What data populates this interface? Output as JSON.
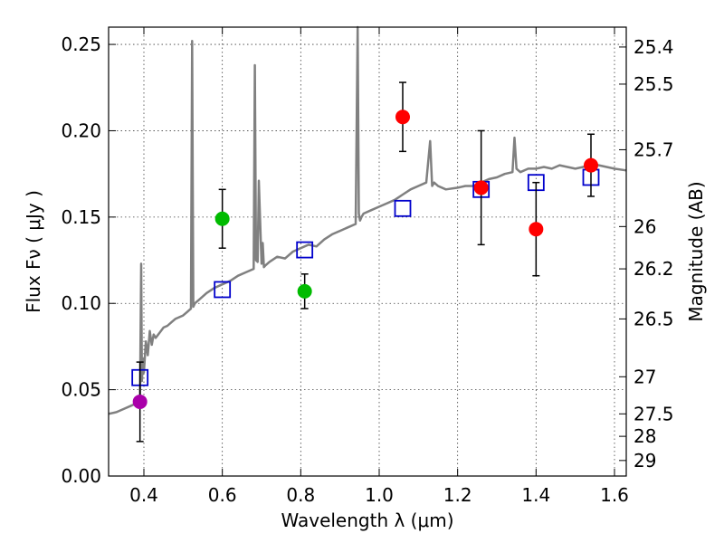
{
  "chart_data": {
    "type": "scatter",
    "xlabel": "Wavelength  λ (μm)",
    "ylabel": "Flux  Fν  ( μJy )",
    "ylabel_right": "Magnitude (AB)",
    "xlim": [
      0.31,
      1.63
    ],
    "ylim": [
      0.0,
      0.26
    ],
    "xticks": [
      0.4,
      0.6,
      0.8,
      1.0,
      1.2,
      1.4,
      1.6
    ],
    "xtick_labels": [
      "0.4",
      "0.6",
      "0.8",
      "1.0",
      "1.2",
      "1.4",
      "1.6"
    ],
    "yticks": [
      0.0,
      0.05,
      0.1,
      0.15,
      0.2,
      0.25
    ],
    "ytick_labels": [
      "0.00",
      "0.05",
      "0.10",
      "0.15",
      "0.20",
      "0.25"
    ],
    "right_ticks": [
      {
        "flux": 0.2485,
        "label": "25.4"
      },
      {
        "flux": 0.227,
        "label": "25.5"
      },
      {
        "flux": 0.189,
        "label": "25.7"
      },
      {
        "flux": 0.1445,
        "label": "26"
      },
      {
        "flux": 0.12,
        "label": "26.2"
      },
      {
        "flux": 0.091,
        "label": "26.5"
      },
      {
        "flux": 0.0575,
        "label": "27"
      },
      {
        "flux": 0.036,
        "label": "27.5"
      },
      {
        "flux": 0.023,
        "label": "28"
      },
      {
        "flux": 0.009,
        "label": "29"
      }
    ],
    "grid": true,
    "series": [
      {
        "color": "#808080",
        "kind": "line",
        "x": [
          0.31,
          0.33,
          0.35,
          0.37,
          0.38,
          0.385,
          0.39,
          0.393,
          0.395,
          0.398,
          0.4,
          0.405,
          0.41,
          0.415,
          0.42,
          0.425,
          0.43,
          0.44,
          0.45,
          0.46,
          0.47,
          0.48,
          0.49,
          0.5,
          0.51,
          0.515,
          0.52,
          0.523,
          0.526,
          0.53,
          0.54,
          0.56,
          0.58,
          0.6,
          0.62,
          0.64,
          0.66,
          0.68,
          0.683,
          0.686,
          0.69,
          0.693,
          0.7,
          0.703,
          0.706,
          0.71,
          0.72,
          0.74,
          0.76,
          0.78,
          0.8,
          0.82,
          0.84,
          0.86,
          0.88,
          0.9,
          0.92,
          0.94,
          0.945,
          0.948,
          0.951,
          0.955,
          0.96,
          0.98,
          1.0,
          1.02,
          1.04,
          1.06,
          1.08,
          1.1,
          1.12,
          1.13,
          1.135,
          1.14,
          1.15,
          1.17,
          1.2,
          1.22,
          1.24,
          1.26,
          1.28,
          1.3,
          1.32,
          1.34,
          1.345,
          1.35,
          1.355,
          1.36,
          1.38,
          1.4,
          1.42,
          1.44,
          1.46,
          1.48,
          1.5,
          1.52,
          1.54,
          1.56,
          1.58,
          1.6,
          1.63
        ],
        "y": [
          0.036,
          0.037,
          0.039,
          0.041,
          0.042,
          0.043,
          0.045,
          0.123,
          0.055,
          0.068,
          0.06,
          0.078,
          0.07,
          0.084,
          0.076,
          0.082,
          0.08,
          0.083,
          0.086,
          0.087,
          0.089,
          0.091,
          0.092,
          0.093,
          0.095,
          0.096,
          0.097,
          0.252,
          0.098,
          0.1,
          0.102,
          0.106,
          0.109,
          0.111,
          0.113,
          0.116,
          0.118,
          0.12,
          0.238,
          0.125,
          0.124,
          0.171,
          0.123,
          0.135,
          0.121,
          0.122,
          0.124,
          0.127,
          0.126,
          0.13,
          0.132,
          0.134,
          0.133,
          0.137,
          0.14,
          0.142,
          0.144,
          0.146,
          0.26,
          0.152,
          0.148,
          0.15,
          0.152,
          0.154,
          0.156,
          0.158,
          0.16,
          0.163,
          0.166,
          0.168,
          0.17,
          0.194,
          0.168,
          0.17,
          0.168,
          0.166,
          0.167,
          0.168,
          0.168,
          0.17,
          0.172,
          0.173,
          0.175,
          0.176,
          0.196,
          0.178,
          0.177,
          0.176,
          0.178,
          0.178,
          0.179,
          0.178,
          0.18,
          0.179,
          0.178,
          0.179,
          0.181,
          0.18,
          0.179,
          0.178,
          0.177
        ]
      },
      {
        "color": "#0000cc",
        "kind": "open-square",
        "x": [
          0.39,
          0.6,
          0.81,
          1.06,
          1.26,
          1.4,
          1.54
        ],
        "y": [
          0.057,
          0.108,
          0.131,
          0.155,
          0.166,
          0.17,
          0.173
        ]
      },
      {
        "color": "#aa00aa",
        "kind": "filled-circle",
        "x": [
          0.39
        ],
        "y": [
          0.043
        ],
        "yerr_low": [
          0.023
        ],
        "yerr_high": [
          0.023
        ]
      },
      {
        "color": "#00bb00",
        "kind": "filled-circle",
        "x": [
          0.6,
          0.81
        ],
        "y": [
          0.149,
          0.107
        ],
        "yerr_low": [
          0.017,
          0.01
        ],
        "yerr_high": [
          0.017,
          0.01
        ]
      },
      {
        "color": "#ff0000",
        "kind": "filled-circle",
        "x": [
          1.06,
          1.26,
          1.4,
          1.54
        ],
        "y": [
          0.208,
          0.167,
          0.143,
          0.18
        ],
        "yerr_low": [
          0.02,
          0.033,
          0.027,
          0.018
        ],
        "yerr_high": [
          0.02,
          0.033,
          0.027,
          0.018
        ]
      }
    ]
  }
}
